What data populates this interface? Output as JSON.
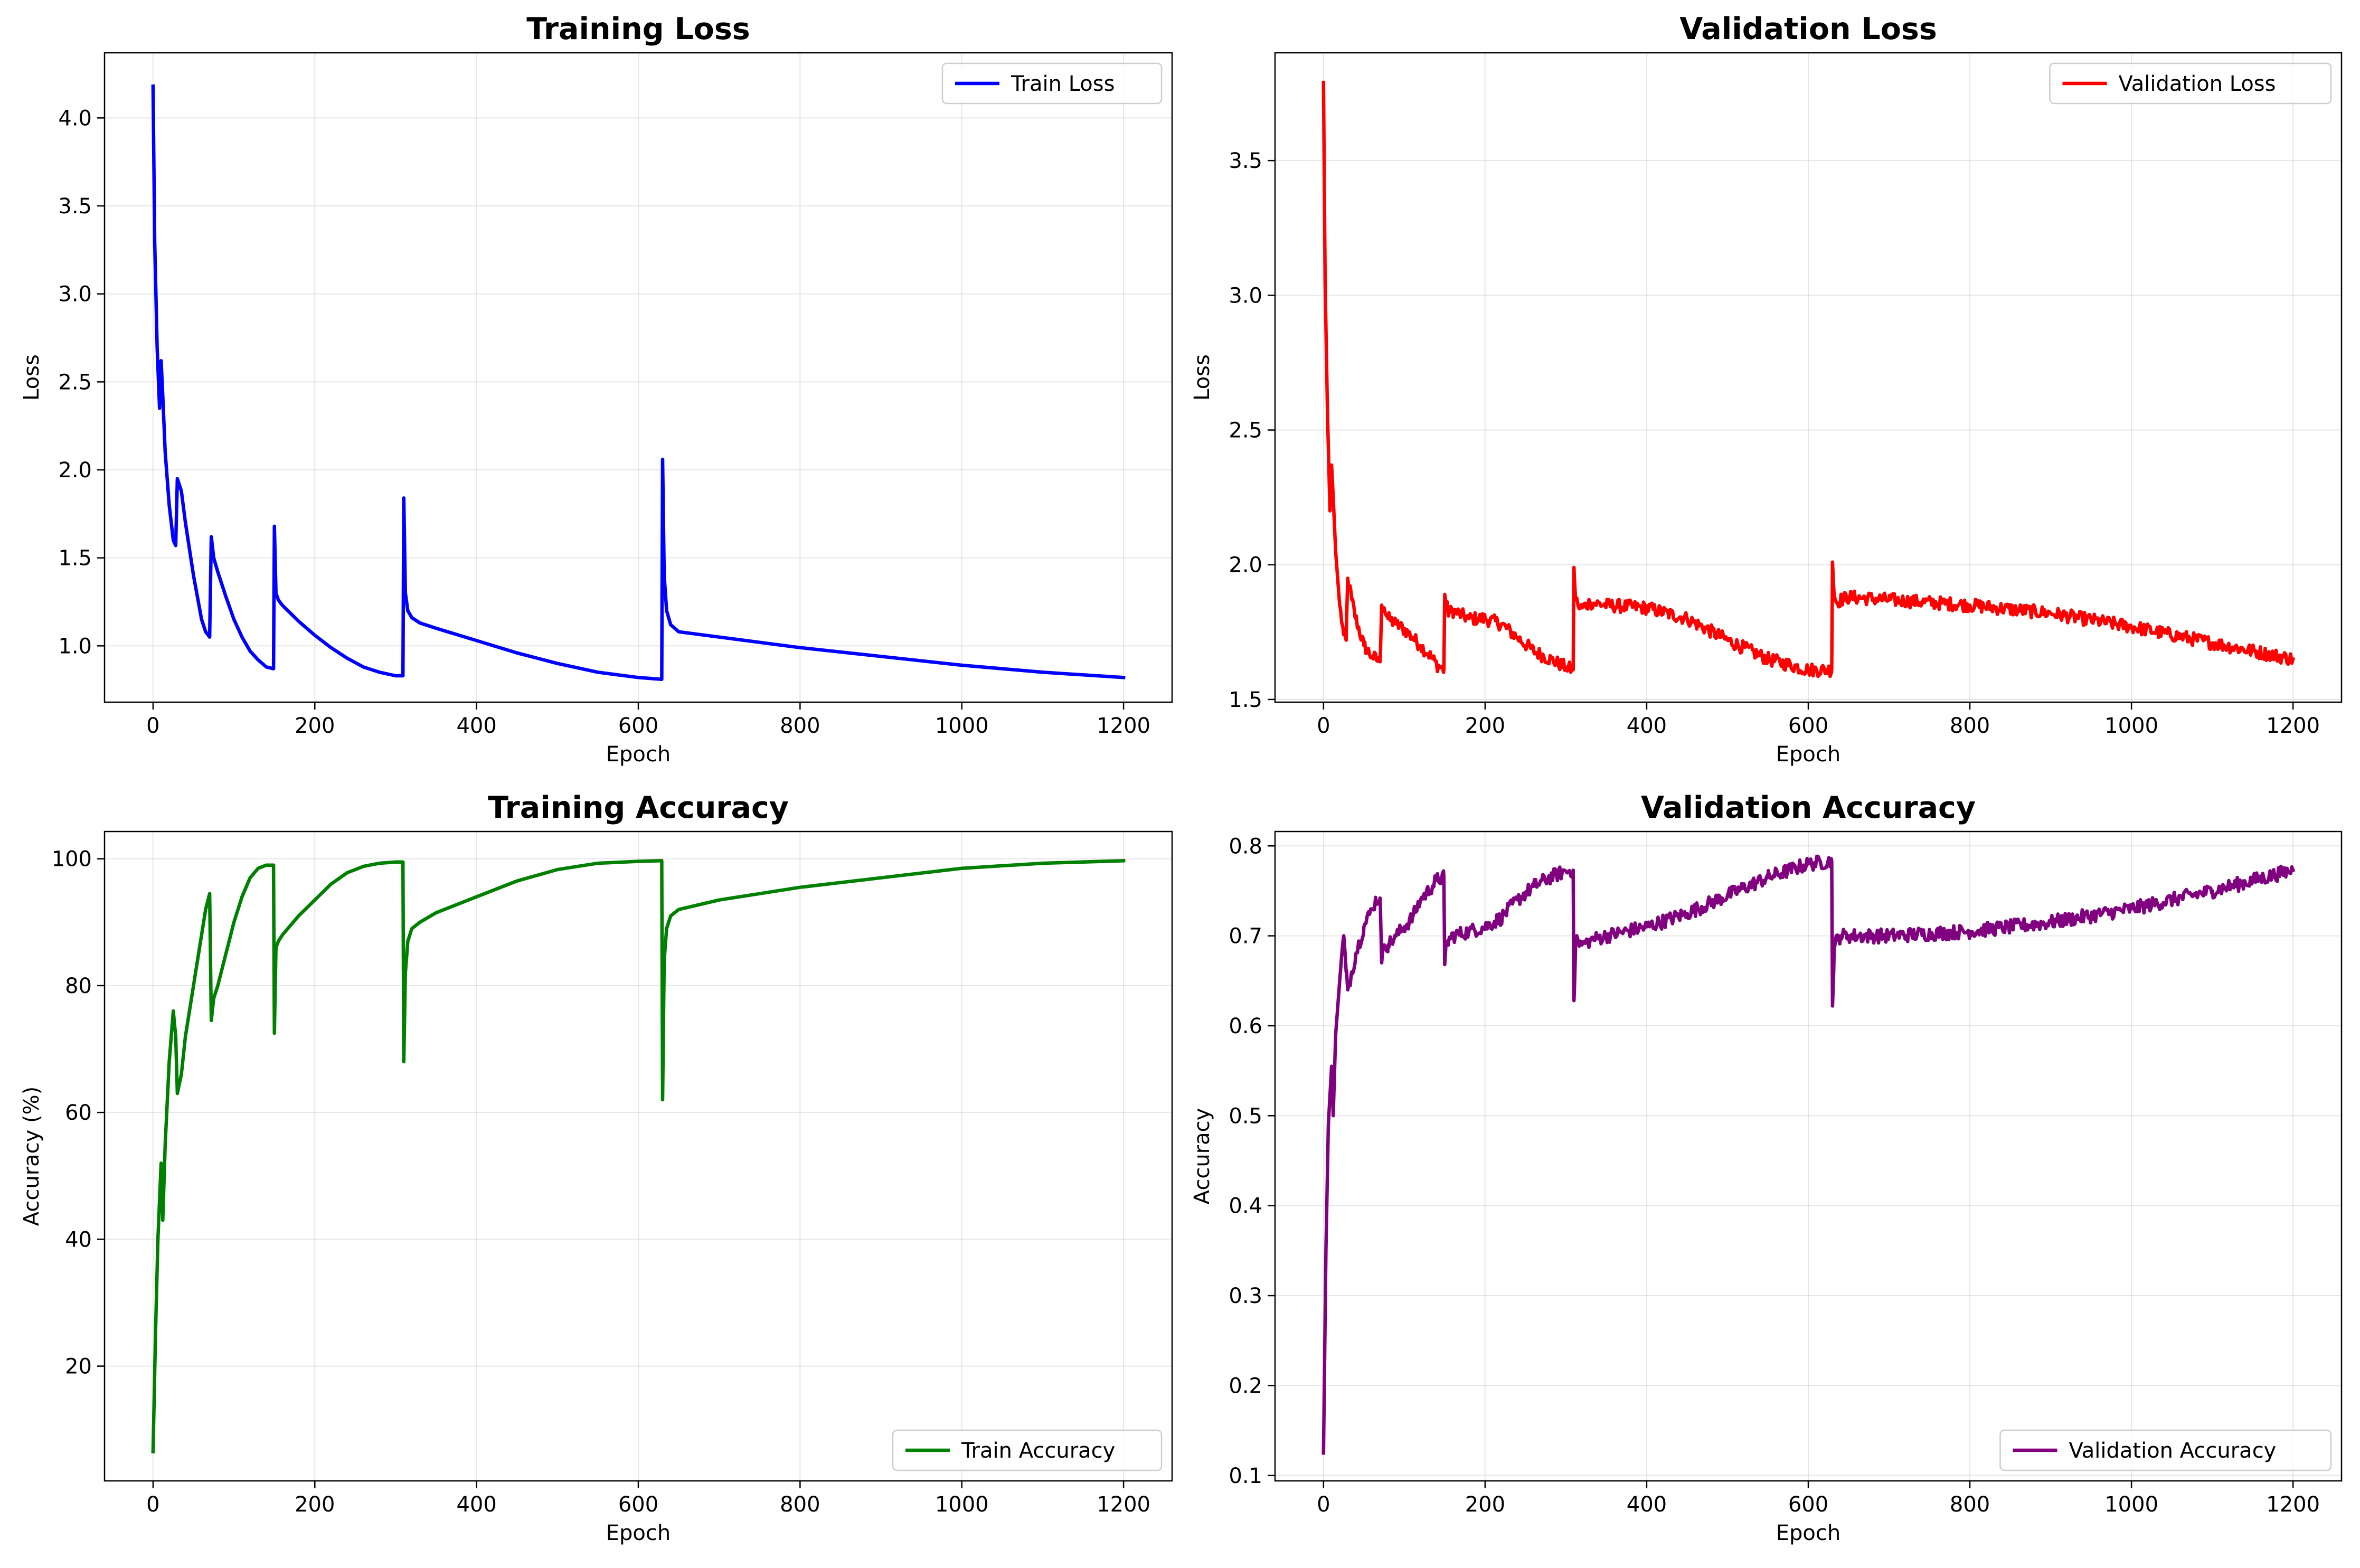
{
  "chart_data": [
    {
      "id": "train_loss",
      "type": "line",
      "title": "Training Loss",
      "xlabel": "Epoch",
      "ylabel": "Loss",
      "xlim": [
        -60,
        1260
      ],
      "ylim": [
        0.68,
        4.37
      ],
      "xticks": [
        0,
        200,
        400,
        600,
        800,
        1000,
        1200
      ],
      "yticks": [
        1.0,
        1.5,
        2.0,
        2.5,
        3.0,
        3.5,
        4.0
      ],
      "ytick_labels": [
        "1.0",
        "1.5",
        "2.0",
        "2.5",
        "3.0",
        "3.5",
        "4.0"
      ],
      "grid": true,
      "legend_position": "top-right",
      "series": [
        {
          "name": "Train Loss",
          "color": "#0000ff",
          "x": [
            0,
            2,
            5,
            8,
            10,
            12,
            15,
            20,
            25,
            28,
            30,
            35,
            40,
            50,
            60,
            65,
            70,
            72,
            75,
            80,
            90,
            100,
            110,
            120,
            130,
            140,
            149,
            150,
            152,
            155,
            160,
            180,
            200,
            220,
            240,
            260,
            280,
            300,
            309,
            310,
            312,
            315,
            320,
            330,
            350,
            400,
            450,
            500,
            550,
            600,
            629,
            630,
            632,
            635,
            640,
            650,
            700,
            800,
            900,
            1000,
            1100,
            1200
          ],
          "y": [
            4.18,
            3.3,
            2.7,
            2.35,
            2.62,
            2.42,
            2.1,
            1.8,
            1.6,
            1.57,
            1.95,
            1.88,
            1.7,
            1.4,
            1.15,
            1.08,
            1.05,
            1.62,
            1.5,
            1.42,
            1.28,
            1.15,
            1.05,
            0.97,
            0.92,
            0.88,
            0.87,
            1.68,
            1.3,
            1.26,
            1.23,
            1.14,
            1.06,
            0.99,
            0.93,
            0.88,
            0.85,
            0.83,
            0.83,
            1.84,
            1.3,
            1.2,
            1.16,
            1.13,
            1.1,
            1.03,
            0.96,
            0.9,
            0.85,
            0.82,
            0.81,
            2.06,
            1.4,
            1.2,
            1.12,
            1.08,
            1.05,
            0.99,
            0.94,
            0.89,
            0.85,
            0.82
          ]
        }
      ]
    },
    {
      "id": "val_loss",
      "type": "line",
      "title": "Validation Loss",
      "xlabel": "Epoch",
      "ylabel": "Loss",
      "xlim": [
        -60,
        1260
      ],
      "ylim": [
        1.49,
        3.9
      ],
      "xticks": [
        0,
        200,
        400,
        600,
        800,
        1000,
        1200
      ],
      "yticks": [
        1.5,
        2.0,
        2.5,
        3.0,
        3.5
      ],
      "ytick_labels": [
        "1.5",
        "2.0",
        "2.5",
        "3.0",
        "3.5"
      ],
      "grid": true,
      "legend_position": "top-right",
      "series": [
        {
          "name": "Validation Loss",
          "color": "#ff0000",
          "x": [
            0,
            2,
            5,
            8,
            10,
            12,
            15,
            20,
            25,
            28,
            30,
            35,
            40,
            50,
            60,
            65,
            70,
            72,
            75,
            80,
            90,
            100,
            110,
            120,
            130,
            140,
            149,
            150,
            152,
            155,
            160,
            180,
            200,
            220,
            240,
            260,
            280,
            300,
            309,
            310,
            312,
            315,
            320,
            330,
            350,
            400,
            450,
            500,
            550,
            600,
            629,
            630,
            632,
            635,
            640,
            650,
            700,
            800,
            900,
            1000,
            1100,
            1200
          ],
          "y": [
            3.79,
            3.05,
            2.55,
            2.2,
            2.37,
            2.25,
            2.05,
            1.85,
            1.74,
            1.72,
            1.95,
            1.87,
            1.8,
            1.7,
            1.66,
            1.65,
            1.64,
            1.85,
            1.84,
            1.8,
            1.78,
            1.76,
            1.73,
            1.7,
            1.67,
            1.63,
            1.61,
            1.89,
            1.85,
            1.82,
            1.83,
            1.8,
            1.8,
            1.78,
            1.73,
            1.68,
            1.65,
            1.62,
            1.61,
            1.99,
            1.87,
            1.85,
            1.84,
            1.86,
            1.85,
            1.84,
            1.8,
            1.72,
            1.65,
            1.61,
            1.61,
            2.01,
            1.89,
            1.86,
            1.87,
            1.88,
            1.87,
            1.85,
            1.82,
            1.77,
            1.71,
            1.65
          ],
          "noise": 0.025
        }
      ]
    },
    {
      "id": "train_acc",
      "type": "line",
      "title": "Training Accuracy",
      "xlabel": "Epoch",
      "ylabel": "Accuracy (%)",
      "xlim": [
        -60,
        1260
      ],
      "ylim": [
        1.9,
        104.3
      ],
      "xticks": [
        0,
        200,
        400,
        600,
        800,
        1000,
        1200
      ],
      "yticks": [
        20,
        40,
        60,
        80,
        100
      ],
      "ytick_labels": [
        "20",
        "40",
        "60",
        "80",
        "100"
      ],
      "grid": true,
      "legend_position": "bottom-right",
      "series": [
        {
          "name": "Train Accuracy",
          "color": "#008000",
          "x": [
            0,
            3,
            6,
            10,
            12,
            15,
            20,
            25,
            28,
            30,
            35,
            40,
            50,
            60,
            65,
            70,
            72,
            75,
            80,
            90,
            100,
            110,
            120,
            130,
            140,
            149,
            150,
            152,
            155,
            160,
            180,
            200,
            220,
            240,
            260,
            280,
            300,
            309,
            310,
            312,
            315,
            320,
            330,
            350,
            400,
            450,
            500,
            550,
            600,
            629,
            630,
            632,
            635,
            640,
            650,
            700,
            800,
            900,
            1000,
            1100,
            1200
          ],
          "y": [
            6.5,
            25,
            40,
            52,
            43,
            55,
            68,
            76,
            72,
            63,
            66,
            72,
            80,
            88,
            92,
            94.5,
            74.5,
            78,
            80,
            85,
            90,
            94,
            97,
            98.5,
            99,
            99,
            72.5,
            86,
            87,
            88,
            91,
            93.5,
            96,
            97.8,
            98.8,
            99.3,
            99.5,
            99.5,
            68,
            82,
            87,
            89,
            90,
            91.5,
            94,
            96.5,
            98.3,
            99.3,
            99.6,
            99.7,
            62,
            84,
            89,
            91,
            92,
            93.5,
            95.5,
            97,
            98.5,
            99.3,
            99.7
          ]
        }
      ]
    },
    {
      "id": "val_acc",
      "type": "line",
      "title": "Validation Accuracy",
      "xlabel": "Epoch",
      "ylabel": "Accuracy",
      "xlim": [
        -60,
        1260
      ],
      "ylim": [
        0.094,
        0.816
      ],
      "xticks": [
        0,
        200,
        400,
        600,
        800,
        1000,
        1200
      ],
      "yticks": [
        0.1,
        0.2,
        0.3,
        0.4,
        0.5,
        0.6,
        0.7,
        0.8
      ],
      "ytick_labels": [
        "0.1",
        "0.2",
        "0.3",
        "0.4",
        "0.5",
        "0.6",
        "0.7",
        "0.8"
      ],
      "grid": true,
      "legend_position": "bottom-right",
      "series": [
        {
          "name": "Validation Accuracy",
          "color": "#800080",
          "x": [
            0,
            3,
            6,
            10,
            12,
            15,
            20,
            25,
            28,
            30,
            35,
            40,
            50,
            60,
            65,
            70,
            72,
            75,
            80,
            90,
            100,
            110,
            120,
            130,
            140,
            149,
            150,
            152,
            155,
            160,
            180,
            200,
            220,
            240,
            260,
            280,
            300,
            309,
            310,
            312,
            315,
            320,
            330,
            350,
            400,
            450,
            500,
            550,
            600,
            629,
            630,
            632,
            635,
            640,
            650,
            700,
            800,
            900,
            1000,
            1100,
            1200
          ],
          "y": [
            0.125,
            0.35,
            0.49,
            0.555,
            0.5,
            0.59,
            0.65,
            0.7,
            0.66,
            0.64,
            0.66,
            0.68,
            0.71,
            0.73,
            0.74,
            0.742,
            0.67,
            0.69,
            0.69,
            0.7,
            0.71,
            0.72,
            0.74,
            0.75,
            0.762,
            0.765,
            0.668,
            0.69,
            0.695,
            0.7,
            0.705,
            0.71,
            0.72,
            0.74,
            0.755,
            0.765,
            0.772,
            0.773,
            0.628,
            0.69,
            0.695,
            0.69,
            0.695,
            0.7,
            0.71,
            0.725,
            0.745,
            0.765,
            0.78,
            0.783,
            0.622,
            0.685,
            0.695,
            0.7,
            0.7,
            0.7,
            0.705,
            0.715,
            0.73,
            0.75,
            0.773
          ],
          "noise": 0.008
        }
      ]
    }
  ]
}
